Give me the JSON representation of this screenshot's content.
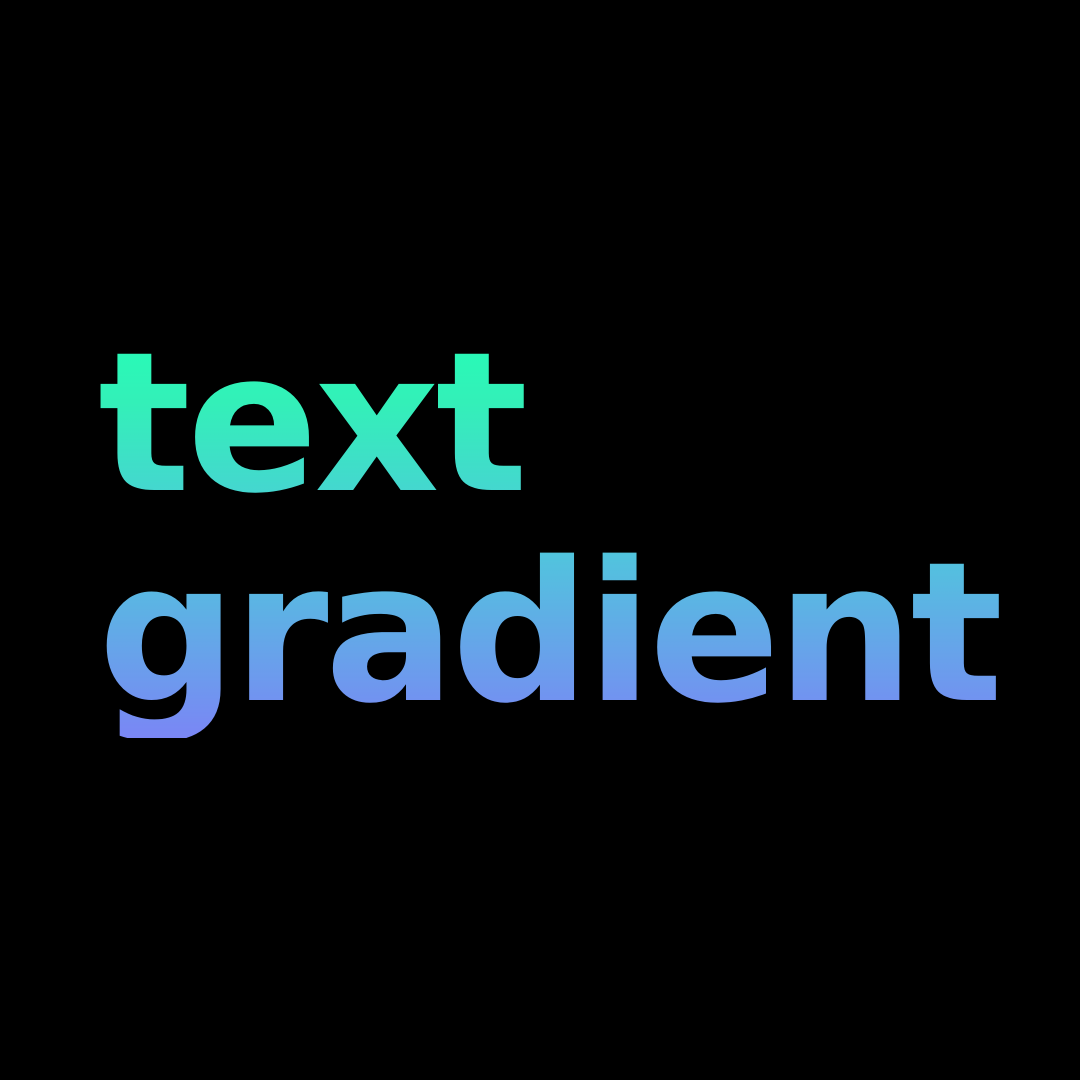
{
  "headline": {
    "line1": "text",
    "line2": "gradient"
  },
  "colors": {
    "background": "#000000",
    "gradient_top": "#22ffb6",
    "gradient_middle": "#4dcadb",
    "gradient_bottom": "#7a86f5"
  }
}
